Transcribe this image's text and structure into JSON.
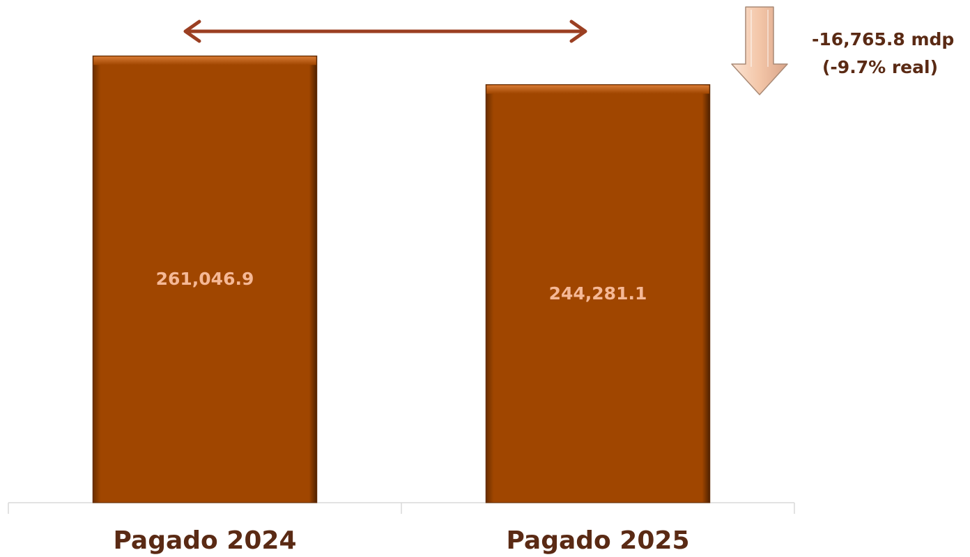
{
  "chart_data": {
    "type": "bar",
    "categories": [
      "Pagado 2024",
      "Pagado 2025"
    ],
    "values": [
      261046.9,
      244281.1
    ],
    "value_labels": [
      "261,046.9",
      "244,281.1"
    ],
    "ylim": [
      0,
      275000
    ],
    "grid": false,
    "legend": "none",
    "annotation": {
      "line1": "-16,765.8 mdp",
      "line2": "(-9.7% real)",
      "direction": "down"
    },
    "colors": {
      "bar": "#a04600",
      "bar_light": "#c8651a",
      "bar_dark": "#5e2800",
      "bar_label": "#f5b896",
      "category_label": "#5a2a14",
      "annotation_text": "#5a2a14",
      "connector_arrow": "#9b3f22",
      "down_arrow_fill": "#f3c6a8",
      "down_arrow_stroke": "#a98a76",
      "axis": "#d9d9d9"
    }
  }
}
